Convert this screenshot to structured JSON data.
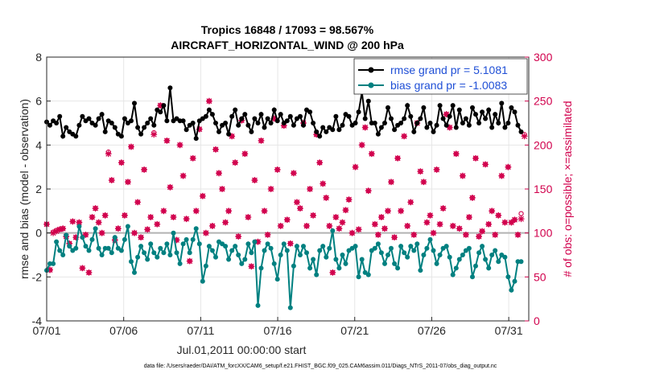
{
  "chart_data": {
    "type": "line",
    "title": "Tropics 16848 / 17093 = 98.567%",
    "subtitle": "AIRCRAFT_HORIZONTAL_WIND @ 200 hPa",
    "xlabel": "Jul.01,2011 00:00:00 start",
    "ylabel": "rmse and bias (model - observation)",
    "y2label": "# of obs: o=possible; ×=assimilated",
    "xlim": [
      0,
      31.3
    ],
    "ylim": [
      -4,
      8
    ],
    "y2lim": [
      0,
      300
    ],
    "x_ticks": [
      0,
      5,
      10,
      15,
      20,
      25,
      30
    ],
    "x_tick_labels": [
      "07/01",
      "07/06",
      "07/11",
      "07/16",
      "07/21",
      "07/26",
      "07/31"
    ],
    "y_ticks": [
      -4,
      -2,
      0,
      2,
      4,
      6,
      8
    ],
    "y2_ticks": [
      0,
      50,
      100,
      150,
      200,
      250,
      300
    ],
    "grid": true,
    "legend_position": "top-right",
    "footer": "data file: /Users/raeder/DAI/ATM_forcXX/CAM6_setup/f.e21.FHIST_BGC.f09_025.CAM6assim.011/Diags_NTrS_2011-07/obs_diag_output.nc",
    "colors": {
      "rmse": "#000000",
      "bias": "#008080",
      "obs": "#d1004c",
      "zero_line": "#b3b3b3"
    },
    "series": [
      {
        "name": "rmse",
        "legend": "rmse grand pr = 5.1081",
        "axis": "left",
        "values": [
          5.05,
          4.9,
          5.1,
          5.0,
          5.3,
          4.4,
          4.8,
          4.6,
          4.5,
          4.4,
          4.9,
          5.3,
          5.1,
          5.2,
          5.0,
          4.9,
          5.2,
          5.4,
          4.6,
          5.1,
          5.0,
          4.8,
          4.5,
          4.4,
          5.2,
          5.0,
          5.1,
          5.9,
          4.8,
          4.5,
          4.8,
          5.0,
          5.2,
          4.9,
          5.6,
          5.5,
          5.8,
          5.1,
          6.6,
          5.1,
          5.2,
          5.1,
          5.1,
          4.7,
          4.9,
          5.0,
          4.3,
          5.1,
          5.2,
          5.3,
          5.6,
          5.4,
          5.0,
          4.6,
          4.9,
          5.0,
          4.5,
          5.3,
          5.6,
          4.9,
          5.2,
          5.4,
          4.9,
          4.6,
          5.2,
          5.0,
          5.4,
          4.8,
          5.2,
          5.0,
          5.6,
          5.1,
          5.4,
          5.0,
          5.1,
          5.3,
          4.9,
          5.2,
          5.3,
          4.9,
          5.6,
          5.5,
          5.0,
          4.6,
          4.4,
          4.8,
          4.6,
          4.8,
          4.7,
          5.3,
          4.7,
          4.9,
          5.4,
          5.3,
          4.9,
          5.0,
          5.5,
          6.4,
          5.2,
          6.0,
          5.0,
          5.0,
          4.5,
          4.8,
          5.0,
          5.7,
          5.2,
          4.7,
          4.9,
          5.0,
          5.2,
          5.8,
          5.3,
          4.6,
          5.0,
          5.2,
          5.7,
          4.8,
          5.0,
          4.6,
          4.9,
          5.8,
          5.2,
          4.9,
          5.3,
          5.8,
          4.8,
          5.6,
          5.0,
          5.2,
          4.9,
          5.7,
          5.4,
          5.0,
          5.5,
          5.2,
          5.6,
          4.8,
          5.4,
          5.0,
          5.9,
          4.8,
          5.0,
          5.7,
          5.5,
          4.9,
          4.6
        ],
        "x_start": 0,
        "x_step": 0.211
      },
      {
        "name": "bias",
        "legend": "bias grand pr = -1.0083",
        "axis": "left",
        "values": [
          -1.7,
          -1.4,
          -1.4,
          -0.4,
          -0.8,
          -1.0,
          -0.1,
          -0.6,
          -0.8,
          -0.7,
          0.3,
          -0.2,
          -0.6,
          -0.8,
          -0.3,
          0.2,
          -0.7,
          -1.0,
          -0.7,
          -0.7,
          -0.9,
          -0.2,
          -0.7,
          -0.8,
          -0.3,
          0.3,
          -1.3,
          -1.8,
          -1.1,
          -0.6,
          -0.9,
          -1.2,
          -0.5,
          -0.9,
          -1.1,
          -0.7,
          -0.9,
          -0.5,
          -1.0,
          0.0,
          -0.9,
          -1.4,
          -0.5,
          -0.3,
          -0.9,
          -0.3,
          0.2,
          -0.5,
          -2.2,
          -1.5,
          -0.6,
          -0.8,
          -1.1,
          -0.4,
          -0.5,
          -0.6,
          -1.2,
          -0.8,
          -0.6,
          -1.0,
          -1.4,
          -1.2,
          -0.5,
          -0.9,
          -0.4,
          -3.3,
          -1.6,
          -0.8,
          -0.5,
          -0.7,
          -1.4,
          -2.1,
          -1.0,
          -0.5,
          -0.8,
          -3.4,
          -1.5,
          -0.6,
          -1.0,
          -0.6,
          -0.9,
          -1.6,
          -1.2,
          -1.9,
          -0.8,
          -0.6,
          -1.1,
          -0.7,
          0.1,
          -1.2,
          -1.6,
          -1.0,
          -1.4,
          -0.8,
          -0.7,
          -0.6,
          -2.0,
          -1.2,
          -1.8,
          -1.9,
          -0.8,
          -0.7,
          -0.5,
          -0.9,
          -1.4,
          -1.0,
          -0.7,
          -1.4,
          -1.6,
          -0.6,
          -0.9,
          -1.1,
          -0.6,
          -0.8,
          -0.5,
          -1.7,
          -1.0,
          -0.7,
          -0.3,
          -0.8,
          -1.4,
          -1.0,
          -0.7,
          -0.6,
          -1.1,
          -1.9,
          -1.6,
          -1.2,
          -1.0,
          -0.8,
          -0.7,
          -2.0,
          -1.5,
          -0.9,
          -0.6,
          -1.2,
          -1.6,
          -1.0,
          -0.8,
          -1.3,
          -1.0,
          -1.1,
          -2.0,
          -2.6,
          -2.2,
          -1.3,
          -1.3
        ],
        "x_start": 0,
        "x_step": 0.211
      },
      {
        "name": "obs_assimilated",
        "axis": "right",
        "marker": "x",
        "values": [
          110,
          58,
          100,
          102,
          104,
          105,
          96,
          88,
          113,
          95,
          112,
          60,
          98,
          55,
          118,
          128,
          112,
          100,
          120,
          190,
          160,
          92,
          105,
          180,
          120,
          158,
          198,
          100,
          135,
          95,
          172,
          104,
          118,
          212,
          110,
          245,
          125,
          205,
          152,
          118,
          92,
          200,
          165,
          116,
          68,
          185,
          125,
          218,
          142,
          100,
          250,
          108,
          195,
          168,
          150,
          112,
          125,
          210,
          180,
          96,
          228,
          190,
          118,
          62,
          160,
          90,
          205,
          125,
          98,
          150,
          230,
          172,
          108,
          222,
          115,
          88,
          168,
          135,
          128,
          225,
          108,
          150,
          120,
          212,
          180,
          156,
          140,
          108,
          55,
          118,
          105,
          112,
          126,
          138,
          100,
          175,
          104,
          200,
          220,
          148,
          190,
          110,
          98,
          118,
          105,
          125,
          158,
          95,
          185,
          125,
          210,
          108,
          135,
          98,
          225,
          170,
          158,
          112,
          120,
          100,
          172,
          110,
          128,
          235,
          220,
          108,
          190,
          105,
          165,
          98,
          118,
          140,
          185,
          96,
          102,
          178,
          110,
          125,
          98,
          120,
          165,
          112,
          175,
          112,
          115,
          98,
          116,
          210
        ],
        "x_start": 0,
        "x_step": 0.211
      },
      {
        "name": "obs_possible",
        "axis": "right",
        "marker": "o",
        "values": [
          110,
          58,
          101,
          103,
          104,
          105,
          96,
          88,
          113,
          95,
          112,
          60,
          98,
          55,
          118,
          128,
          112,
          100,
          120,
          192,
          160,
          92,
          105,
          180,
          120,
          158,
          198,
          100,
          135,
          95,
          172,
          104,
          118,
          214,
          110,
          245,
          125,
          205,
          152,
          118,
          92,
          200,
          165,
          116,
          68,
          185,
          125,
          218,
          142,
          100,
          250,
          108,
          195,
          168,
          150,
          112,
          125,
          210,
          180,
          96,
          228,
          190,
          118,
          62,
          160,
          90,
          205,
          125,
          98,
          150,
          230,
          172,
          108,
          222,
          115,
          88,
          168,
          135,
          128,
          225,
          108,
          150,
          120,
          212,
          180,
          156,
          140,
          108,
          55,
          118,
          105,
          112,
          126,
          138,
          100,
          175,
          104,
          200,
          220,
          148,
          190,
          110,
          98,
          118,
          105,
          125,
          158,
          95,
          185,
          125,
          210,
          108,
          135,
          98,
          225,
          170,
          158,
          112,
          120,
          100,
          172,
          110,
          128,
          235,
          220,
          108,
          190,
          105,
          165,
          98,
          118,
          140,
          185,
          96,
          102,
          178,
          110,
          125,
          98,
          120,
          165,
          112,
          175,
          112,
          115,
          98,
          122,
          212
        ],
        "x_start": 0,
        "x_step": 0.211
      }
    ]
  }
}
